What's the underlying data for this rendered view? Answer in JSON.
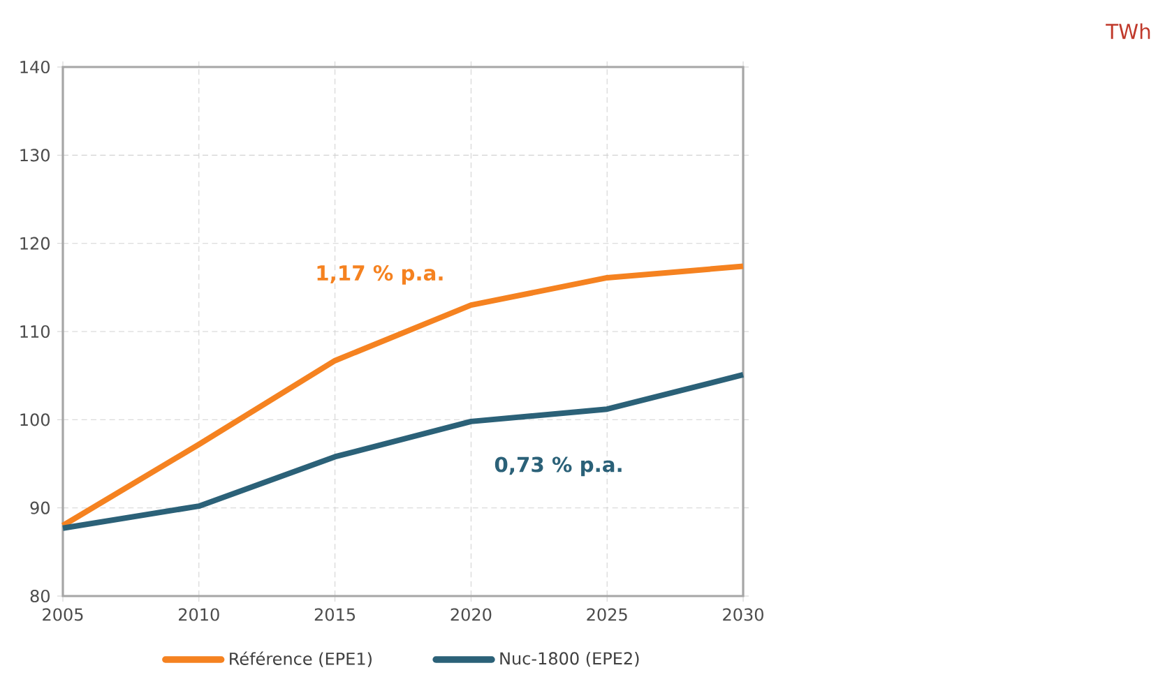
{
  "chart_data": {
    "type": "line",
    "x": [
      2005,
      2010,
      2015,
      2020,
      2025,
      2030
    ],
    "series": [
      {
        "name": "Référence (EPE1)",
        "color": "#f58220",
        "values": [
          88.0,
          97.2,
          106.7,
          113.0,
          116.1,
          117.4
        ]
      },
      {
        "name": "Nuc-1800 (EPE2)",
        "color": "#2b6178",
        "values": [
          87.7,
          90.2,
          95.8,
          99.8,
          101.2,
          105.1
        ]
      }
    ],
    "annotations": [
      "1,17 % p.a.",
      "0,73 % p.a.",
      "TWh"
    ],
    "xlim": [
      2005,
      2030
    ],
    "xticks": [
      2005,
      2010,
      2015,
      2020,
      2025,
      2030
    ],
    "ylim": [
      80,
      140
    ],
    "yticks": [
      80,
      90,
      100,
      110,
      120,
      130,
      140
    ],
    "grid": true,
    "legend": "bottom",
    "marker": "none",
    "line_style": "solid"
  }
}
